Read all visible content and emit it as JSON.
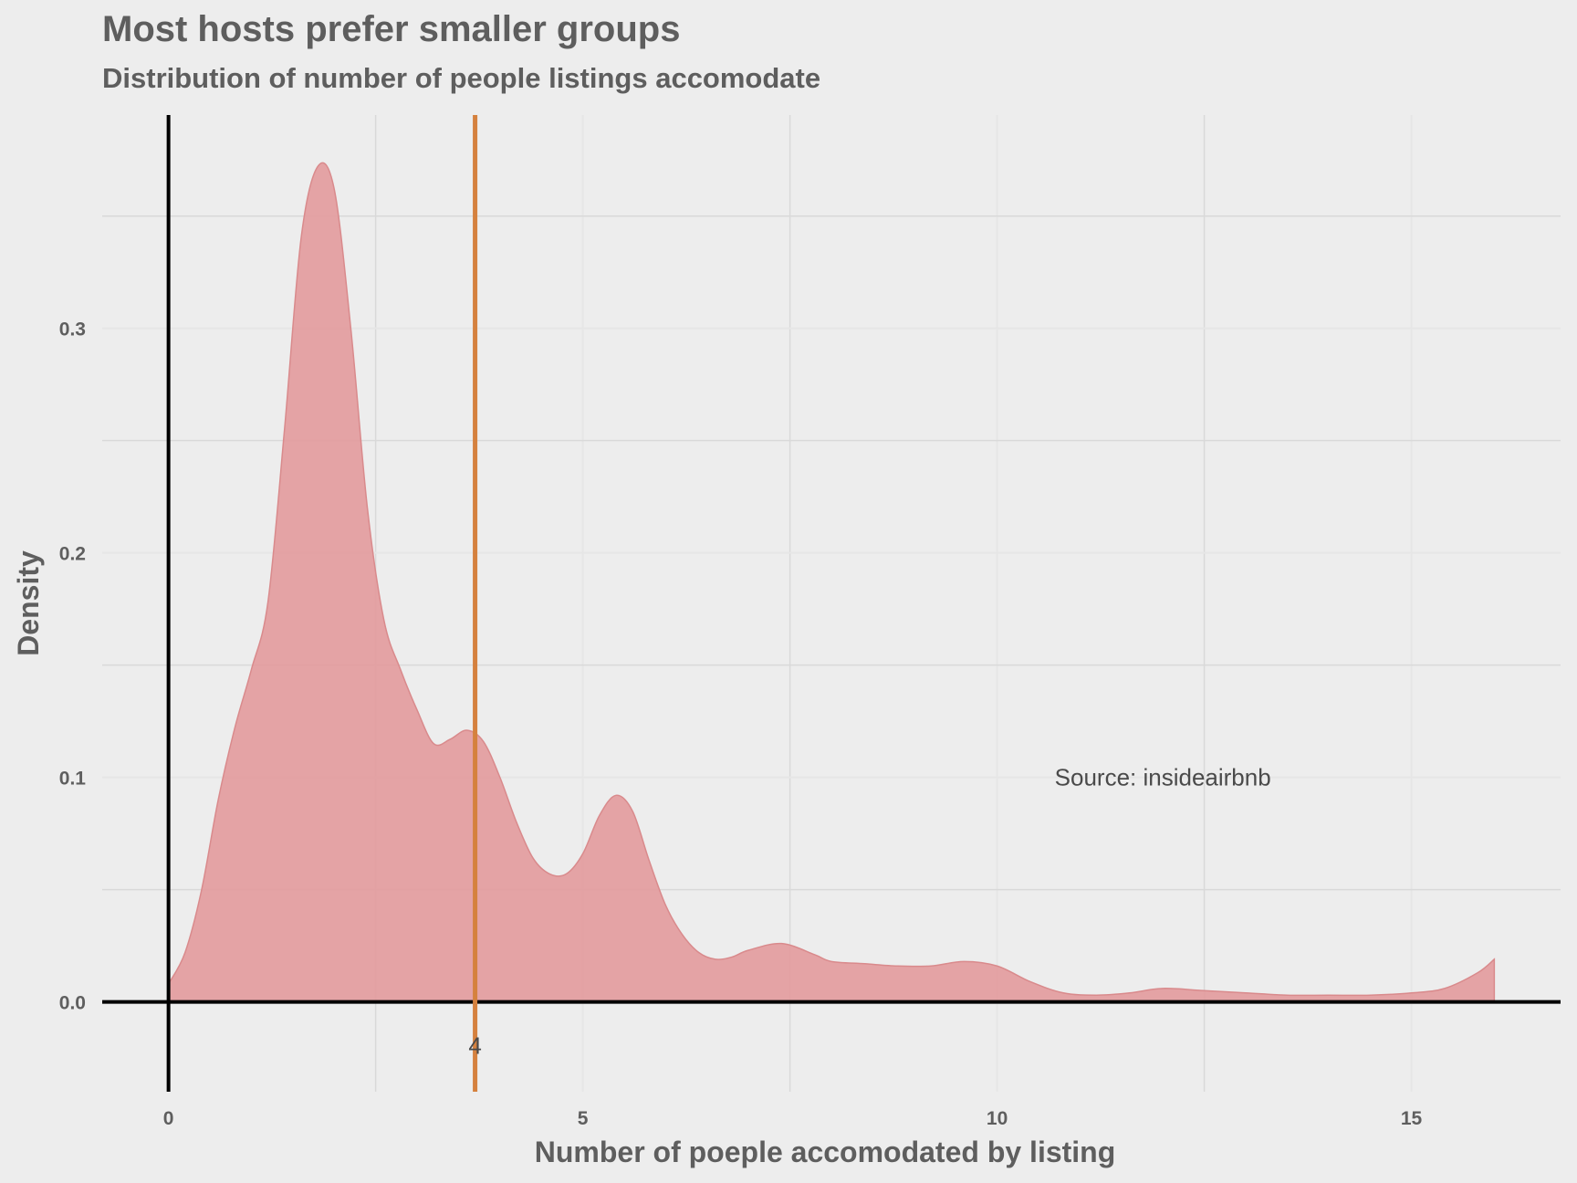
{
  "colors": {
    "background": "#ededed",
    "density_fill": "#e29a9c",
    "density_stroke": "#d98a8c",
    "reference_line": "#d5813e",
    "axis_line": "#000000",
    "grid_major": "#e6e6e6",
    "grid_minor": "#d9d9d9",
    "text": "#5e5e5e"
  },
  "chart_data": {
    "type": "area",
    "title": "Most hosts prefer smaller groups",
    "subtitle": "Distribution of number of people listings accomodate",
    "xlabel": "Number of poeple accomodated by listing",
    "ylabel": "Density",
    "xlim": [
      -0.8,
      16.8
    ],
    "ylim": [
      -0.04,
      0.395
    ],
    "x_ticks": [
      0,
      5,
      10,
      15
    ],
    "x_tick_labels": [
      "0",
      "5",
      "10",
      "15"
    ],
    "y_ticks": [
      0.0,
      0.1,
      0.2,
      0.3
    ],
    "y_tick_labels": [
      "0.0",
      "0.1",
      "0.2",
      "0.3"
    ],
    "grid": true,
    "legend": "none",
    "density_curve": {
      "x": [
        0,
        0.2,
        0.4,
        0.6,
        0.8,
        1.0,
        1.2,
        1.4,
        1.6,
        1.8,
        2.0,
        2.2,
        2.4,
        2.6,
        2.8,
        3.0,
        3.2,
        3.4,
        3.6,
        3.8,
        4.0,
        4.2,
        4.4,
        4.6,
        4.8,
        5.0,
        5.2,
        5.4,
        5.6,
        5.8,
        6.0,
        6.2,
        6.4,
        6.6,
        6.8,
        7.0,
        7.4,
        7.8,
        8.0,
        8.4,
        8.8,
        9.2,
        9.6,
        10.0,
        10.4,
        10.8,
        11.2,
        11.6,
        12.0,
        12.5,
        13.0,
        13.5,
        14.0,
        14.5,
        15.0,
        15.4,
        15.8,
        16.0
      ],
      "y": [
        0.008,
        0.022,
        0.05,
        0.09,
        0.122,
        0.148,
        0.178,
        0.255,
        0.34,
        0.372,
        0.362,
        0.3,
        0.22,
        0.17,
        0.148,
        0.13,
        0.115,
        0.117,
        0.121,
        0.116,
        0.1,
        0.08,
        0.064,
        0.057,
        0.057,
        0.066,
        0.083,
        0.092,
        0.085,
        0.063,
        0.043,
        0.03,
        0.022,
        0.019,
        0.02,
        0.023,
        0.026,
        0.021,
        0.018,
        0.017,
        0.016,
        0.016,
        0.018,
        0.016,
        0.009,
        0.004,
        0.003,
        0.004,
        0.006,
        0.005,
        0.004,
        0.003,
        0.003,
        0.003,
        0.004,
        0.006,
        0.013,
        0.019
      ]
    },
    "reference_line": {
      "x": 3.7,
      "label": "4"
    },
    "annotation": {
      "text": "Source: insideairbnb",
      "x": 12.0,
      "y": 0.1
    }
  }
}
